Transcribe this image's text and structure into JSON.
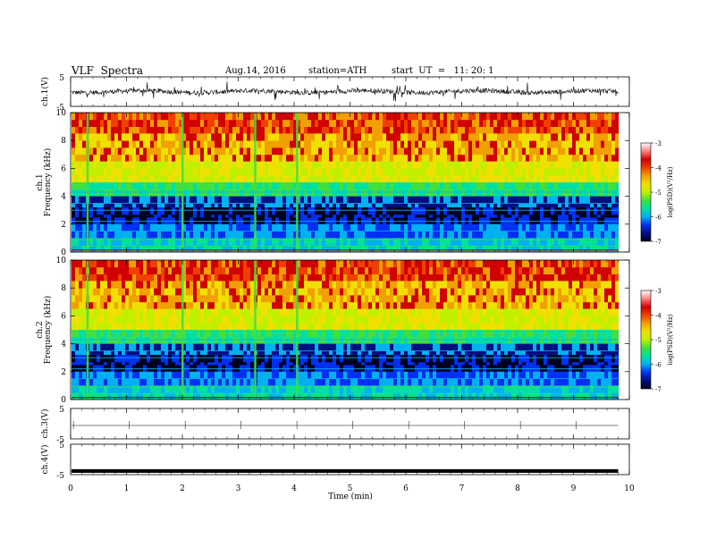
{
  "header": {
    "title": "VLF  Spectra",
    "date": "Aug.14, 2016",
    "station": "station=ATH",
    "start": "start  UT  =   11: 20: 1"
  },
  "colors": {
    "colormap": [
      "#000020",
      "#001080",
      "#0030f0",
      "#00b0f0",
      "#00e0a0",
      "#40e040",
      "#c0f000",
      "#f0e000",
      "#f0a000",
      "#f04000",
      "#d00000",
      "#ff8080",
      "#ffffff"
    ],
    "trace": "#000000",
    "axis": "#000000"
  },
  "chart_data": [
    {
      "type": "line",
      "panel": "ch1-waveform",
      "ylabel": "ch.1(V)",
      "ylim": [
        -5,
        5
      ],
      "yticks": [
        "5",
        "-5"
      ],
      "xlim": [
        0,
        10
      ],
      "description_values": "noisy waveform oscillating near 0 V"
    },
    {
      "type": "heatmap",
      "panel": "ch1-spectrogram",
      "ylabel": "ch.1\nFrequency (kHz)",
      "ylabel_lines": [
        "ch.1",
        "Frequency (kHz)"
      ],
      "ylim": [
        0,
        10
      ],
      "yticks": [
        "0",
        "2",
        "4",
        "6",
        "8",
        "10"
      ],
      "xlim": [
        0,
        10
      ],
      "data_end_min": 9.8,
      "colorbar": {
        "label": "log(PSD)(V²/Hz)",
        "range": [
          -7,
          -3
        ],
        "ticks": [
          "-3",
          "-4",
          "-5",
          "-6",
          "-7"
        ]
      }
    },
    {
      "type": "heatmap",
      "panel": "ch2-spectrogram",
      "ylabel_lines": [
        "ch.2",
        "Frequency (kHz)"
      ],
      "ylim": [
        0,
        10
      ],
      "yticks": [
        "0",
        "2",
        "4",
        "6",
        "8",
        "10"
      ],
      "xlim": [
        0,
        10
      ],
      "data_end_min": 9.8,
      "colorbar": {
        "label": "log(PSD)(V²/Hz)",
        "range": [
          -7,
          -3
        ],
        "ticks": [
          "-3",
          "-4",
          "-5",
          "-6",
          "-7"
        ]
      }
    },
    {
      "type": "line",
      "panel": "ch3-waveform",
      "ylabel": "ch.3(V)",
      "ylim": [
        -5,
        5
      ],
      "yticks": [
        "5",
        "-5"
      ],
      "xlim": [
        0,
        10
      ]
    },
    {
      "type": "line",
      "panel": "ch4-waveform",
      "ylabel": "ch.4(V)",
      "ylim": [
        -5,
        5
      ],
      "yticks": [
        "5",
        "-5"
      ],
      "xlim": [
        0,
        10
      ]
    }
  ],
  "xaxis": {
    "label": "Time  (min)",
    "ticks": [
      "0",
      "1",
      "2",
      "3",
      "4",
      "5",
      "6",
      "7",
      "8",
      "9",
      "10"
    ]
  }
}
